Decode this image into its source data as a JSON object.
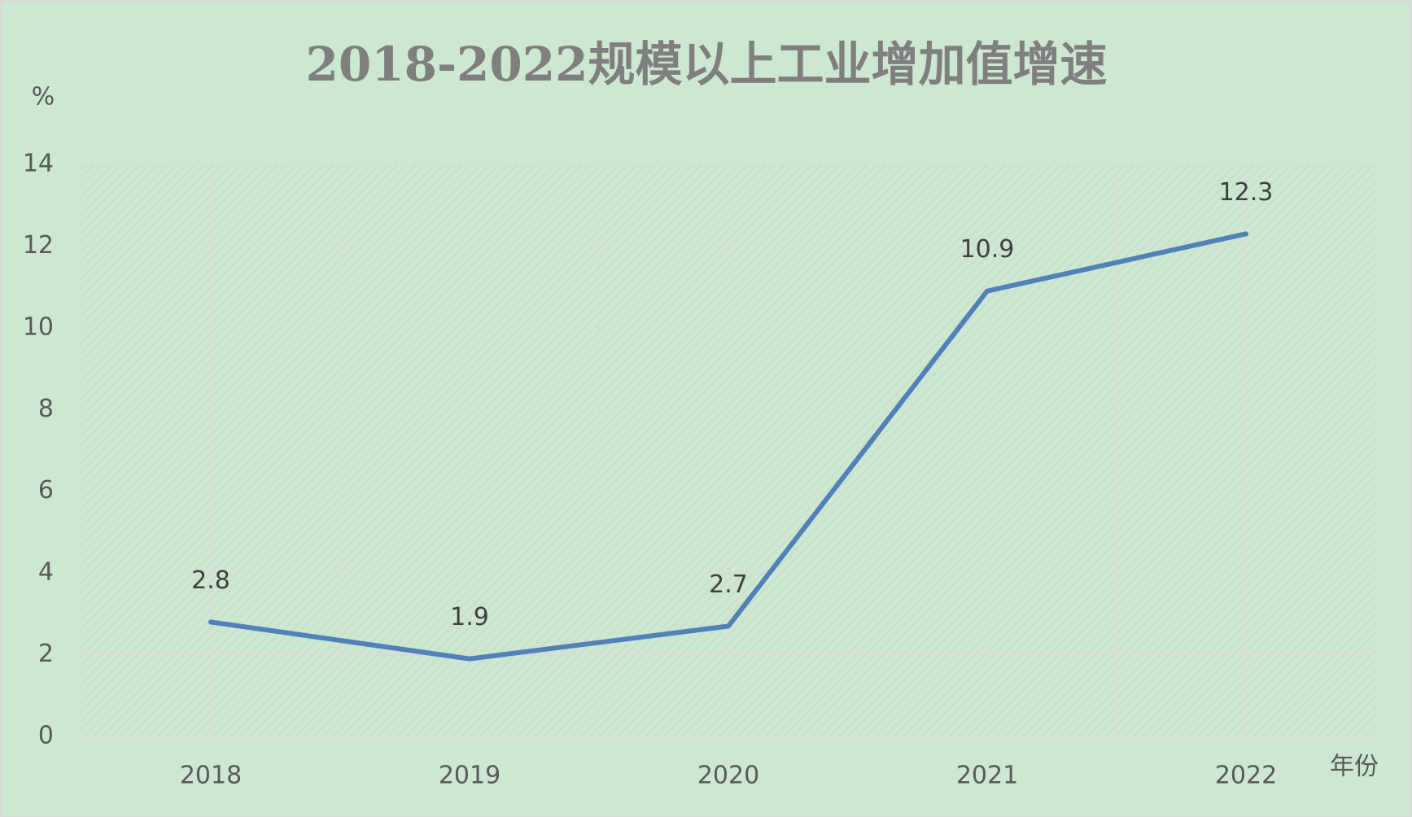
{
  "chart_data": {
    "type": "line",
    "title": "2018-2022规模以上工业增加值增速",
    "y_label": "%",
    "x_label": "年份",
    "categories": [
      "2018",
      "2019",
      "2020",
      "2021",
      "2022"
    ],
    "values": [
      2.8,
      1.9,
      2.7,
      10.9,
      12.3
    ],
    "color": "#4f81bd",
    "ylim": [
      0,
      14
    ],
    "yticks": [
      0,
      2,
      4,
      6,
      8,
      10,
      12,
      14
    ],
    "grid": true
  }
}
